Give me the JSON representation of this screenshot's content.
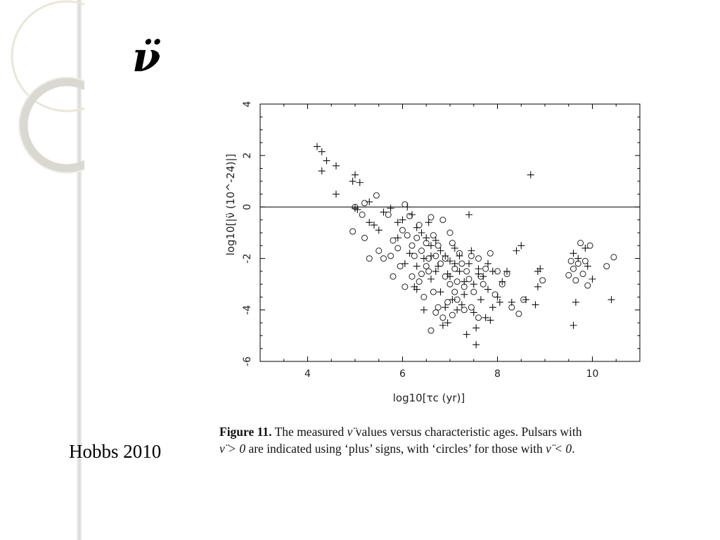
{
  "slide": {
    "title": "ν̈",
    "credit": "Hobbs 2010"
  },
  "caption": {
    "label": "Figure 11.",
    "line1_part1": "The measured ",
    "line1_math": "ν̈",
    "line1_part2": " values versus characteristic ages. Pulsars with",
    "line2_math1": "ν̈ > 0",
    "line2_part2": " are indicated using ‘plus’ signs, with ‘circles’ for those with ",
    "line2_math2": "ν̈ < 0",
    "line2_end": "."
  },
  "chart_data": {
    "type": "scatter",
    "title": "",
    "xlabel": "log10[τc (yr)]",
    "ylabel": "log10[|ν̈ (10^-24)|]",
    "xlim": [
      3,
      11
    ],
    "ylim": [
      -6,
      4
    ],
    "xticks": [
      4,
      6,
      8,
      10
    ],
    "yticks": [
      -6,
      -4,
      -2,
      0,
      2,
      4
    ],
    "reference_line_y": 0,
    "grid": false,
    "series": [
      {
        "marker": "plus",
        "points": [
          [
            4.2,
            2.35
          ],
          [
            4.3,
            2.15
          ],
          [
            4.4,
            1.8
          ],
          [
            4.6,
            1.6
          ],
          [
            4.3,
            1.4
          ],
          [
            4.6,
            0.5
          ],
          [
            5.0,
            1.25
          ],
          [
            4.95,
            1.0
          ],
          [
            5.1,
            0.95
          ],
          [
            5.3,
            0.2
          ],
          [
            5.0,
            -0.05
          ],
          [
            5.05,
            -0.1
          ],
          [
            5.3,
            -0.6
          ],
          [
            5.4,
            -0.7
          ],
          [
            5.5,
            -0.9
          ],
          [
            5.6,
            -0.2
          ],
          [
            5.75,
            -0.05
          ],
          [
            5.9,
            -0.6
          ],
          [
            6.0,
            -0.5
          ],
          [
            6.1,
            0.0
          ],
          [
            6.2,
            -0.3
          ],
          [
            6.3,
            -0.8
          ],
          [
            6.4,
            -1.0
          ],
          [
            6.5,
            -1.2
          ],
          [
            6.55,
            -0.6
          ],
          [
            6.6,
            -1.5
          ],
          [
            6.7,
            -1.3
          ],
          [
            6.8,
            -1.7
          ],
          [
            6.9,
            -1.9
          ],
          [
            7.0,
            -2.1
          ],
          [
            7.1,
            -1.6
          ],
          [
            7.2,
            -2.5
          ],
          [
            7.3,
            -2.9
          ],
          [
            7.4,
            -0.3
          ],
          [
            7.5,
            -3.0
          ],
          [
            7.6,
            -2.4
          ],
          [
            7.7,
            -2.7
          ],
          [
            7.8,
            -3.2
          ],
          [
            7.9,
            -2.5
          ],
          [
            8.0,
            -3.5
          ],
          [
            8.1,
            -2.9
          ],
          [
            8.2,
            -2.5
          ],
          [
            8.3,
            -3.7
          ],
          [
            8.4,
            -1.7
          ],
          [
            8.5,
            -1.5
          ],
          [
            8.6,
            -3.6
          ],
          [
            8.7,
            1.25
          ],
          [
            8.85,
            -2.5
          ],
          [
            8.9,
            -2.4
          ],
          [
            8.85,
            -3.1
          ],
          [
            8.8,
            -3.8
          ],
          [
            5.9,
            -1.2
          ],
          [
            6.05,
            -2.2
          ],
          [
            6.15,
            -1.8
          ],
          [
            6.3,
            -2.3
          ],
          [
            6.45,
            -2.0
          ],
          [
            6.6,
            -2.8
          ],
          [
            6.7,
            -2.5
          ],
          [
            6.8,
            -3.3
          ],
          [
            6.9,
            -3.9
          ],
          [
            7.0,
            -2.7
          ],
          [
            7.05,
            -3.6
          ],
          [
            7.15,
            -4.0
          ],
          [
            7.25,
            -3.8
          ],
          [
            7.35,
            -4.95
          ],
          [
            7.55,
            -5.35
          ],
          [
            7.55,
            -4.7
          ],
          [
            7.5,
            -4.1
          ],
          [
            7.65,
            -3.6
          ],
          [
            7.75,
            -4.3
          ],
          [
            7.85,
            -4.4
          ],
          [
            7.9,
            -3.9
          ],
          [
            8.05,
            -3.7
          ],
          [
            6.45,
            -4.0
          ],
          [
            6.85,
            -4.6
          ],
          [
            6.95,
            -4.5
          ],
          [
            6.3,
            -3.2
          ],
          [
            6.25,
            -3.1
          ],
          [
            9.6,
            -4.6
          ],
          [
            9.65,
            -3.7
          ],
          [
            9.6,
            -1.8
          ],
          [
            9.7,
            -2.0
          ],
          [
            9.85,
            -1.6
          ],
          [
            9.9,
            -2.3
          ],
          [
            10.0,
            -2.8
          ],
          [
            10.4,
            -3.6
          ],
          [
            7.1,
            -2.2
          ],
          [
            7.2,
            -1.9
          ],
          [
            7.4,
            -2.2
          ],
          [
            7.45,
            -1.7
          ],
          [
            6.6,
            -1.9
          ],
          [
            6.75,
            -2.3
          ],
          [
            6.95,
            -2.6
          ],
          [
            7.3,
            -3.4
          ],
          [
            7.6,
            -2.6
          ],
          [
            7.8,
            -2.2
          ]
        ]
      },
      {
        "marker": "circle",
        "points": [
          [
            4.95,
            -0.95
          ],
          [
            5.0,
            0.0
          ],
          [
            5.15,
            -0.3
          ],
          [
            5.2,
            0.15
          ],
          [
            5.45,
            0.45
          ],
          [
            5.2,
            -1.2
          ],
          [
            5.3,
            -2.0
          ],
          [
            5.5,
            -1.7
          ],
          [
            5.6,
            -2.0
          ],
          [
            5.75,
            -1.9
          ],
          [
            5.7,
            -0.3
          ],
          [
            5.8,
            -1.3
          ],
          [
            5.9,
            -1.6
          ],
          [
            6.0,
            -0.9
          ],
          [
            6.05,
            0.1
          ],
          [
            6.1,
            -1.1
          ],
          [
            6.15,
            -0.35
          ],
          [
            6.2,
            -1.5
          ],
          [
            6.3,
            -1.2
          ],
          [
            6.35,
            -0.7
          ],
          [
            6.4,
            -1.7
          ],
          [
            6.5,
            -1.4
          ],
          [
            6.55,
            -2.0
          ],
          [
            6.6,
            -0.4
          ],
          [
            6.65,
            -1.1
          ],
          [
            6.7,
            -1.9
          ],
          [
            6.75,
            -1.5
          ],
          [
            6.8,
            -2.2
          ],
          [
            6.85,
            -0.5
          ],
          [
            6.9,
            -2.7
          ],
          [
            7.0,
            -1.0
          ],
          [
            7.05,
            -1.4
          ],
          [
            7.1,
            -2.4
          ],
          [
            7.15,
            -2.9
          ],
          [
            7.2,
            -1.8
          ],
          [
            7.25,
            -2.2
          ],
          [
            7.3,
            -3.1
          ],
          [
            7.35,
            -2.5
          ],
          [
            7.45,
            -1.9
          ],
          [
            7.5,
            -3.3
          ],
          [
            7.6,
            -2.0
          ],
          [
            7.7,
            -3.0
          ],
          [
            7.75,
            -2.4
          ],
          [
            7.85,
            -1.8
          ],
          [
            7.95,
            -3.4
          ],
          [
            8.0,
            -2.5
          ],
          [
            8.1,
            -3.0
          ],
          [
            8.2,
            -2.6
          ],
          [
            8.3,
            -3.9
          ],
          [
            8.45,
            -4.15
          ],
          [
            8.55,
            -3.6
          ],
          [
            8.95,
            -2.85
          ],
          [
            6.05,
            -3.1
          ],
          [
            6.2,
            -2.7
          ],
          [
            6.35,
            -2.9
          ],
          [
            6.45,
            -3.5
          ],
          [
            6.55,
            -2.5
          ],
          [
            6.65,
            -3.3
          ],
          [
            6.75,
            -3.9
          ],
          [
            6.85,
            -4.3
          ],
          [
            6.95,
            -3.7
          ],
          [
            7.05,
            -4.2
          ],
          [
            7.15,
            -3.6
          ],
          [
            7.3,
            -4.0
          ],
          [
            7.45,
            -3.9
          ],
          [
            7.6,
            -4.3
          ],
          [
            6.6,
            -4.8
          ],
          [
            6.7,
            -4.1
          ],
          [
            5.8,
            -2.7
          ],
          [
            5.95,
            -2.3
          ],
          [
            9.5,
            -2.65
          ],
          [
            9.55,
            -2.1
          ],
          [
            9.6,
            -2.4
          ],
          [
            9.65,
            -2.85
          ],
          [
            9.7,
            -2.2
          ],
          [
            9.75,
            -1.4
          ],
          [
            9.8,
            -2.6
          ],
          [
            9.85,
            -2.1
          ],
          [
            9.9,
            -3.05
          ],
          [
            9.95,
            -1.5
          ],
          [
            10.3,
            -2.3
          ],
          [
            10.45,
            -1.95
          ],
          [
            7.0,
            -3.0
          ],
          [
            7.4,
            -2.8
          ],
          [
            7.65,
            -2.7
          ],
          [
            6.5,
            -2.3
          ],
          [
            6.9,
            -2.0
          ],
          [
            7.1,
            -3.3
          ],
          [
            6.25,
            -1.9
          ],
          [
            6.4,
            -2.6
          ]
        ]
      }
    ]
  }
}
